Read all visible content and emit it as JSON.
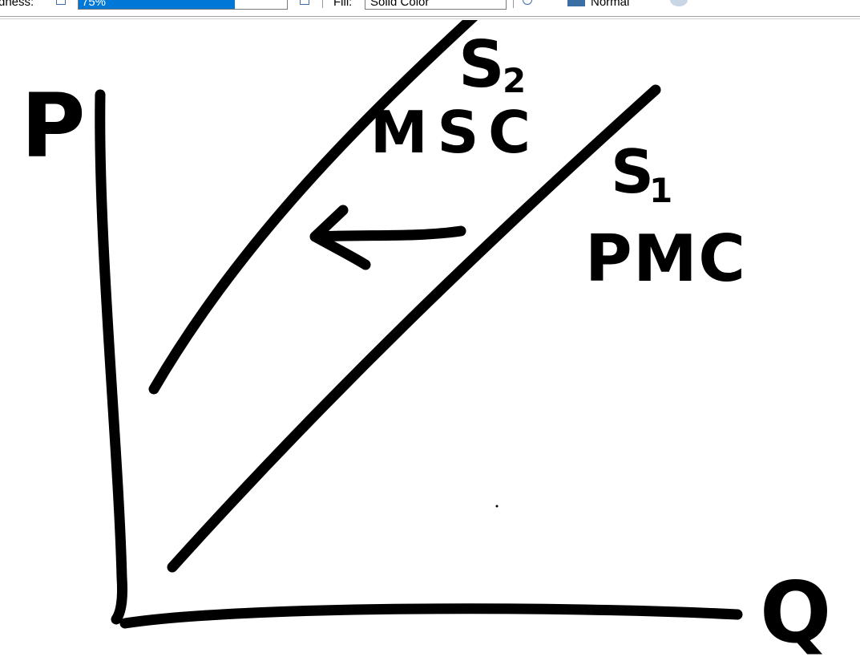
{
  "toolbar": {
    "roundness_label": "dness:",
    "roundness_value": "75%",
    "fill_label": "Fill:",
    "fill_value": "Solid Color",
    "blend_value": "Normal"
  },
  "drawing": {
    "y_axis_label": "P",
    "x_axis_label": "Q",
    "curve_left": {
      "letter": "S",
      "subscript": "2",
      "caption": "MSC"
    },
    "curve_right": {
      "letter": "S",
      "subscript": "1",
      "caption": "PMC"
    }
  }
}
